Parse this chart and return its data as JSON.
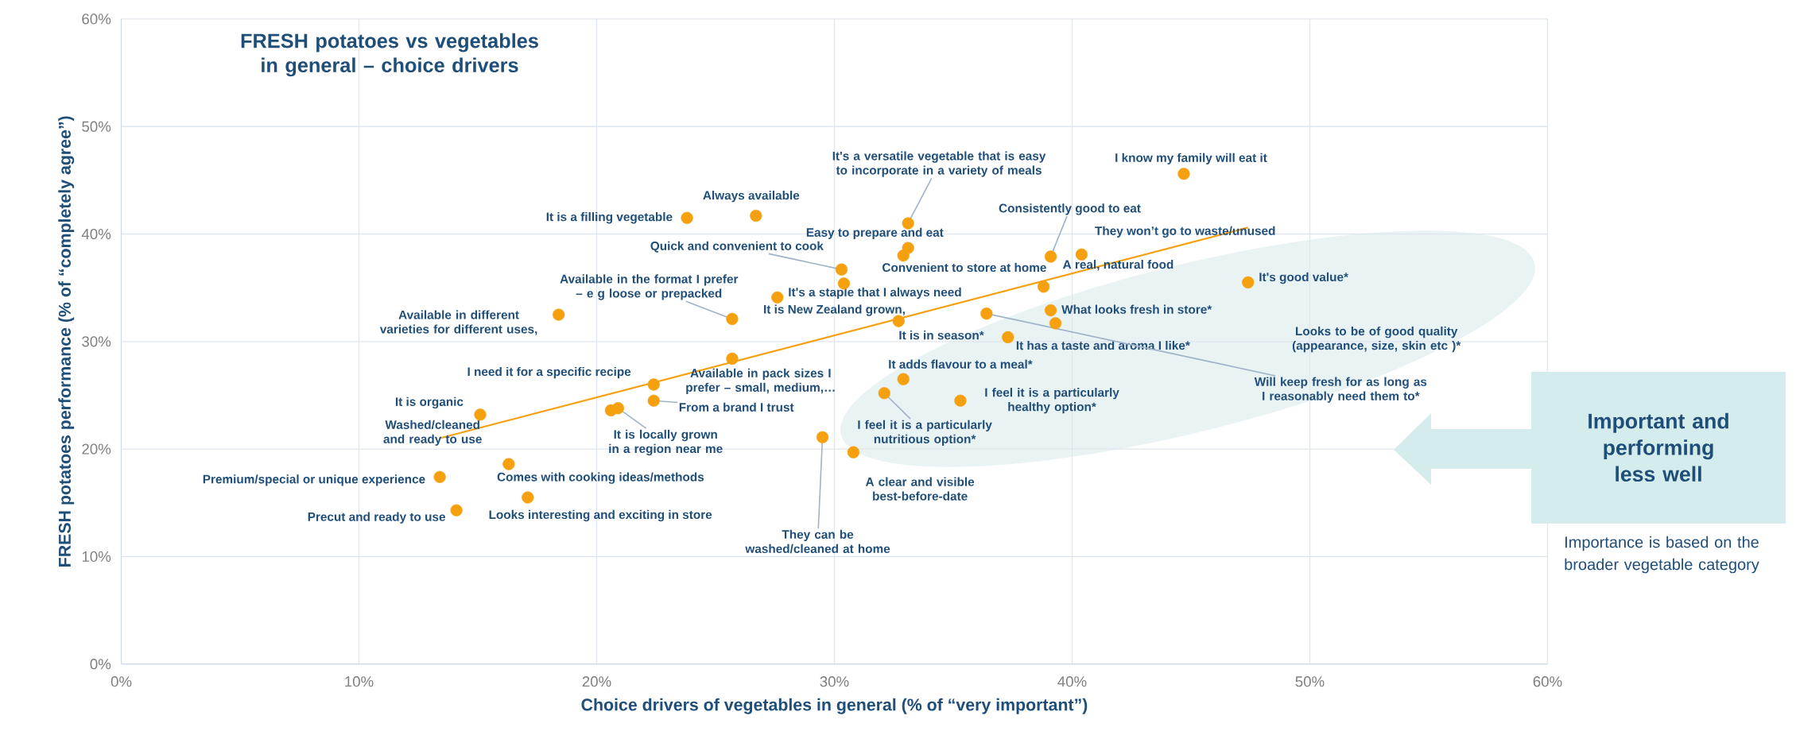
{
  "chart_data": {
    "type": "scatter",
    "title": "FRESH potatoes vs vegetables in general – choice drivers",
    "xlabel": "Choice drivers of vegetables in general (% of “very important”)",
    "ylabel": "FRESH potatoes performance (% of “completely agree”)",
    "xlim": [
      0,
      60
    ],
    "ylim": [
      0,
      60
    ],
    "xticks": [
      {
        "value": 0,
        "label": "0%"
      },
      {
        "value": 10,
        "label": "10%"
      },
      {
        "value": 20,
        "label": "20%"
      },
      {
        "value": 30,
        "label": "30%"
      },
      {
        "value": 40,
        "label": "40%"
      },
      {
        "value": 50,
        "label": "50%"
      },
      {
        "value": 60,
        "label": "60%"
      }
    ],
    "yticks": [
      {
        "value": 0,
        "label": "0%"
      },
      {
        "value": 10,
        "label": "10%"
      },
      {
        "value": 20,
        "label": "20%"
      },
      {
        "value": 30,
        "label": "30%"
      },
      {
        "value": 40,
        "label": "40%"
      },
      {
        "value": 50,
        "label": "50%"
      },
      {
        "value": 60,
        "label": "60%"
      }
    ],
    "grid": true,
    "series": [
      {
        "marker": "circle",
        "color": "#f5a00f",
        "x": [
          44.7,
          33.1,
          26.7,
          23.8,
          39.1,
          40.4,
          33.1,
          30.3,
          32.9,
          38.8,
          47.4,
          25.7,
          30.4,
          27.6,
          18.4,
          39.1,
          39.3,
          32.7,
          37.3,
          32.9,
          36.4,
          22.4,
          25.7,
          15.1,
          22.4,
          20.6,
          20.9,
          35.3,
          32.1,
          13.4,
          16.3,
          30.8,
          14.1,
          17.1,
          29.5
        ],
        "values": [
          45.6,
          41.0,
          41.7,
          41.5,
          37.9,
          38.1,
          38.7,
          36.7,
          38.0,
          35.1,
          35.5,
          32.1,
          35.4,
          34.1,
          32.5,
          32.9,
          31.7,
          31.9,
          30.4,
          26.5,
          32.6,
          26.0,
          28.4,
          23.2,
          24.5,
          23.6,
          23.8,
          24.5,
          25.2,
          17.4,
          18.6,
          19.7,
          14.3,
          15.5,
          21.1
        ]
      },
      {
        "type": "line",
        "color": "#f5a00f",
        "x": [
          13.4,
          47.4
        ],
        "values": [
          21.0,
          40.6
        ]
      }
    ],
    "annotations": [
      {
        "text": "I know my family will eat it",
        "x": 44.7,
        "y": 45.6
      },
      {
        "text": "It's a versatile vegetable that is easy to incorporate in a variety of meals",
        "x": 33.1,
        "y": 41.0
      },
      {
        "text": "Always available",
        "x": 26.7,
        "y": 41.7
      },
      {
        "text": "It is a filling vegetable",
        "x": 23.8,
        "y": 41.5
      },
      {
        "text": "Consistently good to eat",
        "x": 39.1,
        "y": 37.9
      },
      {
        "text": "They won’t go to waste/unused",
        "x": 40.4,
        "y": 38.1
      },
      {
        "text": "Easy to prepare and eat",
        "x": 33.1,
        "y": 38.7
      },
      {
        "text": "Quick and convenient to cook",
        "x": 30.3,
        "y": 36.7
      },
      {
        "text": "Convenient to store at home",
        "x": 32.9,
        "y": 38.0
      },
      {
        "text": "A real, natural food",
        "x": 38.8,
        "y": 35.1
      },
      {
        "text": "It's good value*",
        "x": 47.4,
        "y": 35.5
      },
      {
        "text": "Available in the format I prefer – e g loose or prepacked",
        "x": 25.7,
        "y": 32.1
      },
      {
        "text": "It's a staple that I always need",
        "x": 30.4,
        "y": 35.4
      },
      {
        "text": "It is New Zealand grown,",
        "x": 27.6,
        "y": 34.1
      },
      {
        "text": "Available in different varieties for different uses,",
        "x": 18.4,
        "y": 32.5
      },
      {
        "text": "What looks fresh in store*",
        "x": 39.1,
        "y": 32.9
      },
      "Looks to be of good quality (appearance, size, skin etc )*",
      {
        "text": "It is in season*",
        "x": 32.7,
        "y": 31.9
      },
      {
        "text": "It has a taste and aroma I like*",
        "x": 37.3,
        "y": 30.4
      },
      {
        "text": "It adds flavour to a meal*",
        "x": 32.9,
        "y": 26.5
      },
      {
        "text": "Will keep fresh for as long as I reasonably need them to*",
        "x": 36.4,
        "y": 32.6
      },
      {
        "text": "I need it for a specific recipe",
        "x": 22.4,
        "y": 26.0
      },
      {
        "text": "Available in pack sizes I prefer – small, medium,…",
        "x": 25.7,
        "y": 28.4
      },
      {
        "text": "It is organic",
        "x": 15.1,
        "y": 23.2
      },
      {
        "text": "From a brand I trust",
        "x": 22.4,
        "y": 24.5
      },
      "Washed/cleaned and ready to use",
      {
        "text": "It is locally grown in a region near me",
        "x": 20.9,
        "y": 23.8
      },
      {
        "text": "I feel it is a particularly healthy option*",
        "x": 35.3,
        "y": 24.5
      },
      {
        "text": "I feel it is a particularly nutritious option*",
        "x": 32.1,
        "y": 25.2
      },
      {
        "text": "Premium/special or unique experience",
        "x": 13.4,
        "y": 17.4
      },
      {
        "text": "Comes with cooking ideas/methods",
        "x": 16.3,
        "y": 18.6
      },
      {
        "text": "A clear and visible best-before-date",
        "x": 30.8,
        "y": 19.7
      },
      {
        "text": "Precut and ready to use",
        "x": 14.1,
        "y": 14.3
      },
      {
        "text": "Looks interesting and exciting in store",
        "x": 17.1,
        "y": 15.5
      },
      {
        "text": "They can be washed/cleaned at home",
        "x": 29.5,
        "y": 21.1
      },
      "Important and performing less well",
      "Importance is based on the broader vegetable category"
    ]
  }
}
